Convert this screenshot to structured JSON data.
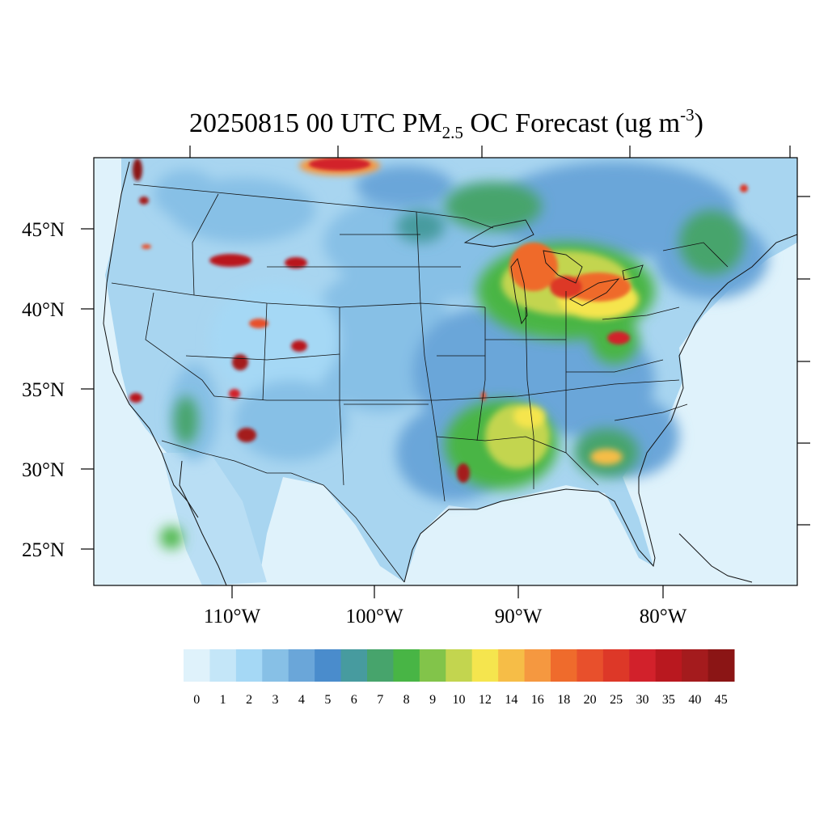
{
  "title": {
    "date_time": "20250815 00 UTC",
    "pm": "PM",
    "pm_sub": "2.5",
    "species": "OC Forecast",
    "units_open": "(ug m",
    "units_sup": "-3",
    "units_close": ")"
  },
  "map": {
    "region": "Contiguous United States",
    "lat_labels": [
      "45°N",
      "40°N",
      "35°N",
      "30°N",
      "25°N"
    ],
    "lon_labels": [
      "110°W",
      "100°W",
      "90°W",
      "80°W"
    ]
  },
  "colorbar": {
    "levels": [
      "0",
      "1",
      "2",
      "3",
      "4",
      "5",
      "6",
      "7",
      "8",
      "9",
      "10",
      "12",
      "14",
      "16",
      "18",
      "20",
      "25",
      "30",
      "35",
      "40",
      "45"
    ],
    "colors": [
      "#dff2fb",
      "#c4e6f8",
      "#a5d8f5",
      "#87c0e6",
      "#6aa6d9",
      "#4a8ccc",
      "#479b9f",
      "#47a46c",
      "#48b545",
      "#82c44a",
      "#c3d54f",
      "#f5e54e",
      "#f6bd47",
      "#f59840",
      "#ef6b2c",
      "#e8502c",
      "#dd3828",
      "#d2212b",
      "#b9181f",
      "#a41b1d",
      "#8b1515"
    ]
  },
  "colors": {
    "ocean": "#dff2fb",
    "land_base": "#9fcdec",
    "boundary_line": "#111111"
  }
}
